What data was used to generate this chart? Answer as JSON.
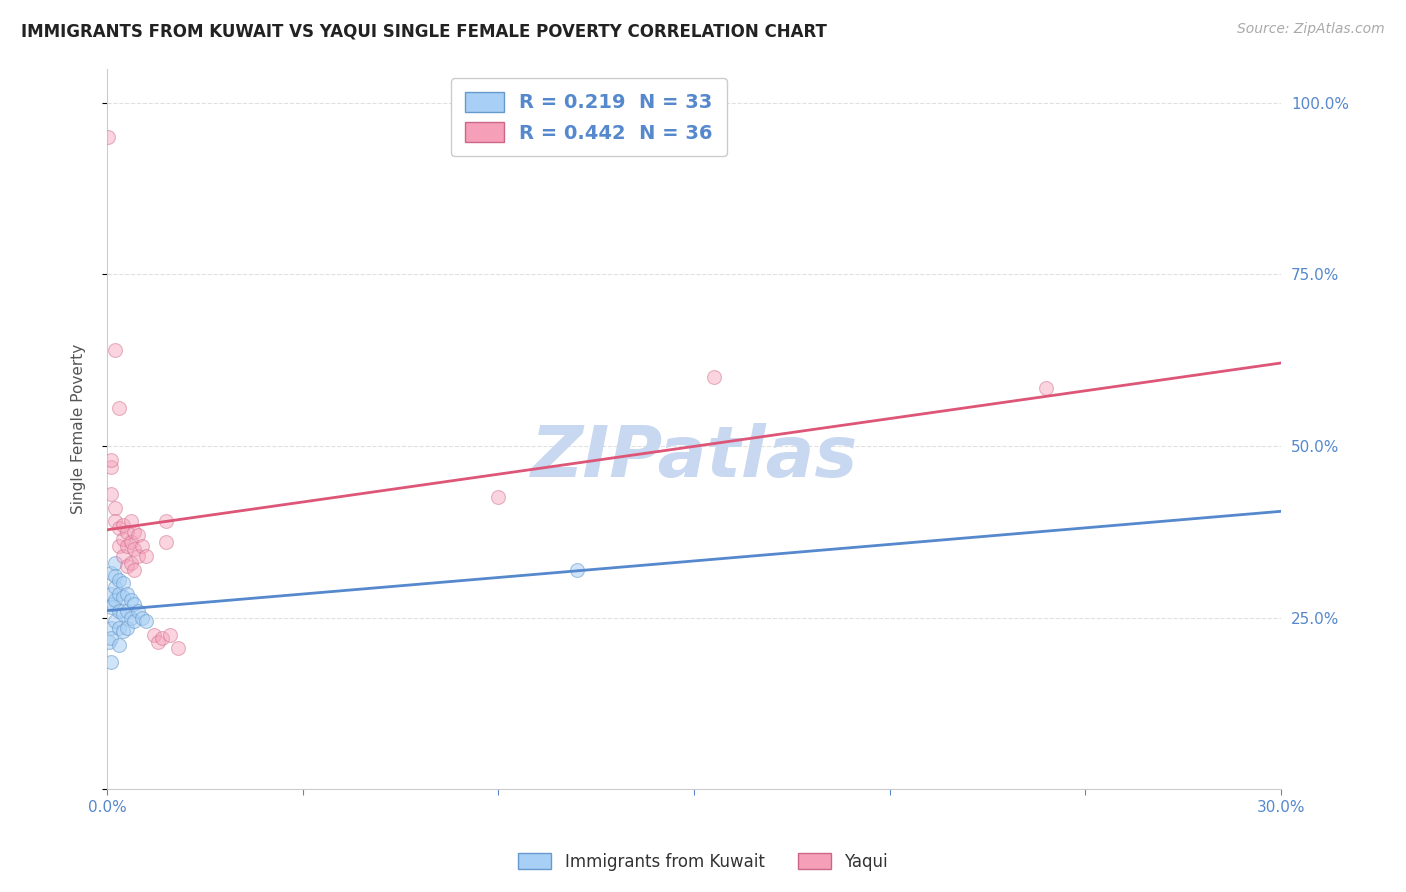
{
  "title": "IMMIGRANTS FROM KUWAIT VS YAQUI SINGLE FEMALE POVERTY CORRELATION CHART",
  "source": "Source: ZipAtlas.com",
  "xlabel_label": "Immigrants from Kuwait",
  "ylabel_label": "Single Female Poverty",
  "x_min": 0.0,
  "x_max": 0.3,
  "y_min": 0.0,
  "y_max": 1.05,
  "x_tick_positions": [
    0.0,
    0.05,
    0.1,
    0.15,
    0.2,
    0.25,
    0.3
  ],
  "x_tick_labels": [
    "0.0%",
    "",
    "",
    "",
    "",
    "",
    "30.0%"
  ],
  "y_tick_positions": [
    0.0,
    0.25,
    0.5,
    0.75,
    1.0
  ],
  "y_tick_labels": [
    "",
    "25.0%",
    "50.0%",
    "75.0%",
    "100.0%"
  ],
  "blue_fill": "#a8cff5",
  "blue_edge": "#6699cc",
  "pink_fill": "#f5a0b8",
  "pink_edge": "#cc6688",
  "blue_line_color": "#5588cc",
  "pink_line_color": "#dd5577",
  "blue_R": "0.219",
  "blue_N": "33",
  "pink_R": "0.442",
  "pink_N": "36",
  "blue_scatter_x": [
    0.0005,
    0.001,
    0.001,
    0.001,
    0.001,
    0.001,
    0.001,
    0.0015,
    0.002,
    0.002,
    0.002,
    0.002,
    0.002,
    0.003,
    0.003,
    0.003,
    0.003,
    0.003,
    0.004,
    0.004,
    0.004,
    0.004,
    0.005,
    0.005,
    0.005,
    0.006,
    0.006,
    0.007,
    0.007,
    0.008,
    0.009,
    0.01,
    0.12
  ],
  "blue_scatter_y": [
    0.215,
    0.235,
    0.285,
    0.315,
    0.265,
    0.22,
    0.185,
    0.27,
    0.295,
    0.33,
    0.31,
    0.275,
    0.245,
    0.305,
    0.285,
    0.26,
    0.235,
    0.21,
    0.3,
    0.28,
    0.255,
    0.23,
    0.285,
    0.26,
    0.235,
    0.275,
    0.25,
    0.27,
    0.245,
    0.26,
    0.25,
    0.245,
    0.32
  ],
  "pink_scatter_x": [
    0.0003,
    0.001,
    0.001,
    0.002,
    0.002,
    0.002,
    0.003,
    0.003,
    0.003,
    0.004,
    0.004,
    0.004,
    0.005,
    0.005,
    0.005,
    0.006,
    0.006,
    0.006,
    0.007,
    0.007,
    0.007,
    0.008,
    0.008,
    0.009,
    0.01,
    0.012,
    0.013,
    0.014,
    0.015,
    0.015,
    0.016,
    0.018,
    0.1,
    0.155,
    0.24,
    0.001
  ],
  "pink_scatter_y": [
    0.95,
    0.47,
    0.43,
    0.64,
    0.41,
    0.39,
    0.555,
    0.38,
    0.355,
    0.385,
    0.365,
    0.34,
    0.375,
    0.355,
    0.325,
    0.39,
    0.36,
    0.33,
    0.375,
    0.35,
    0.32,
    0.37,
    0.34,
    0.355,
    0.34,
    0.225,
    0.215,
    0.22,
    0.39,
    0.36,
    0.225,
    0.205,
    0.425,
    0.6,
    0.585,
    0.48
  ],
  "watermark_text": "ZIPatlas",
  "watermark_color": "#c8d8f0",
  "background_color": "#ffffff",
  "grid_color": "#e0e0e0",
  "tick_color": "#5588cc",
  "title_fontsize": 12,
  "source_fontsize": 10,
  "scatter_size": 100,
  "blue_scatter_alpha": 0.55,
  "pink_scatter_alpha": 0.45,
  "legend_R_N_color": "#5588cc",
  "legend_fontsize": 14
}
